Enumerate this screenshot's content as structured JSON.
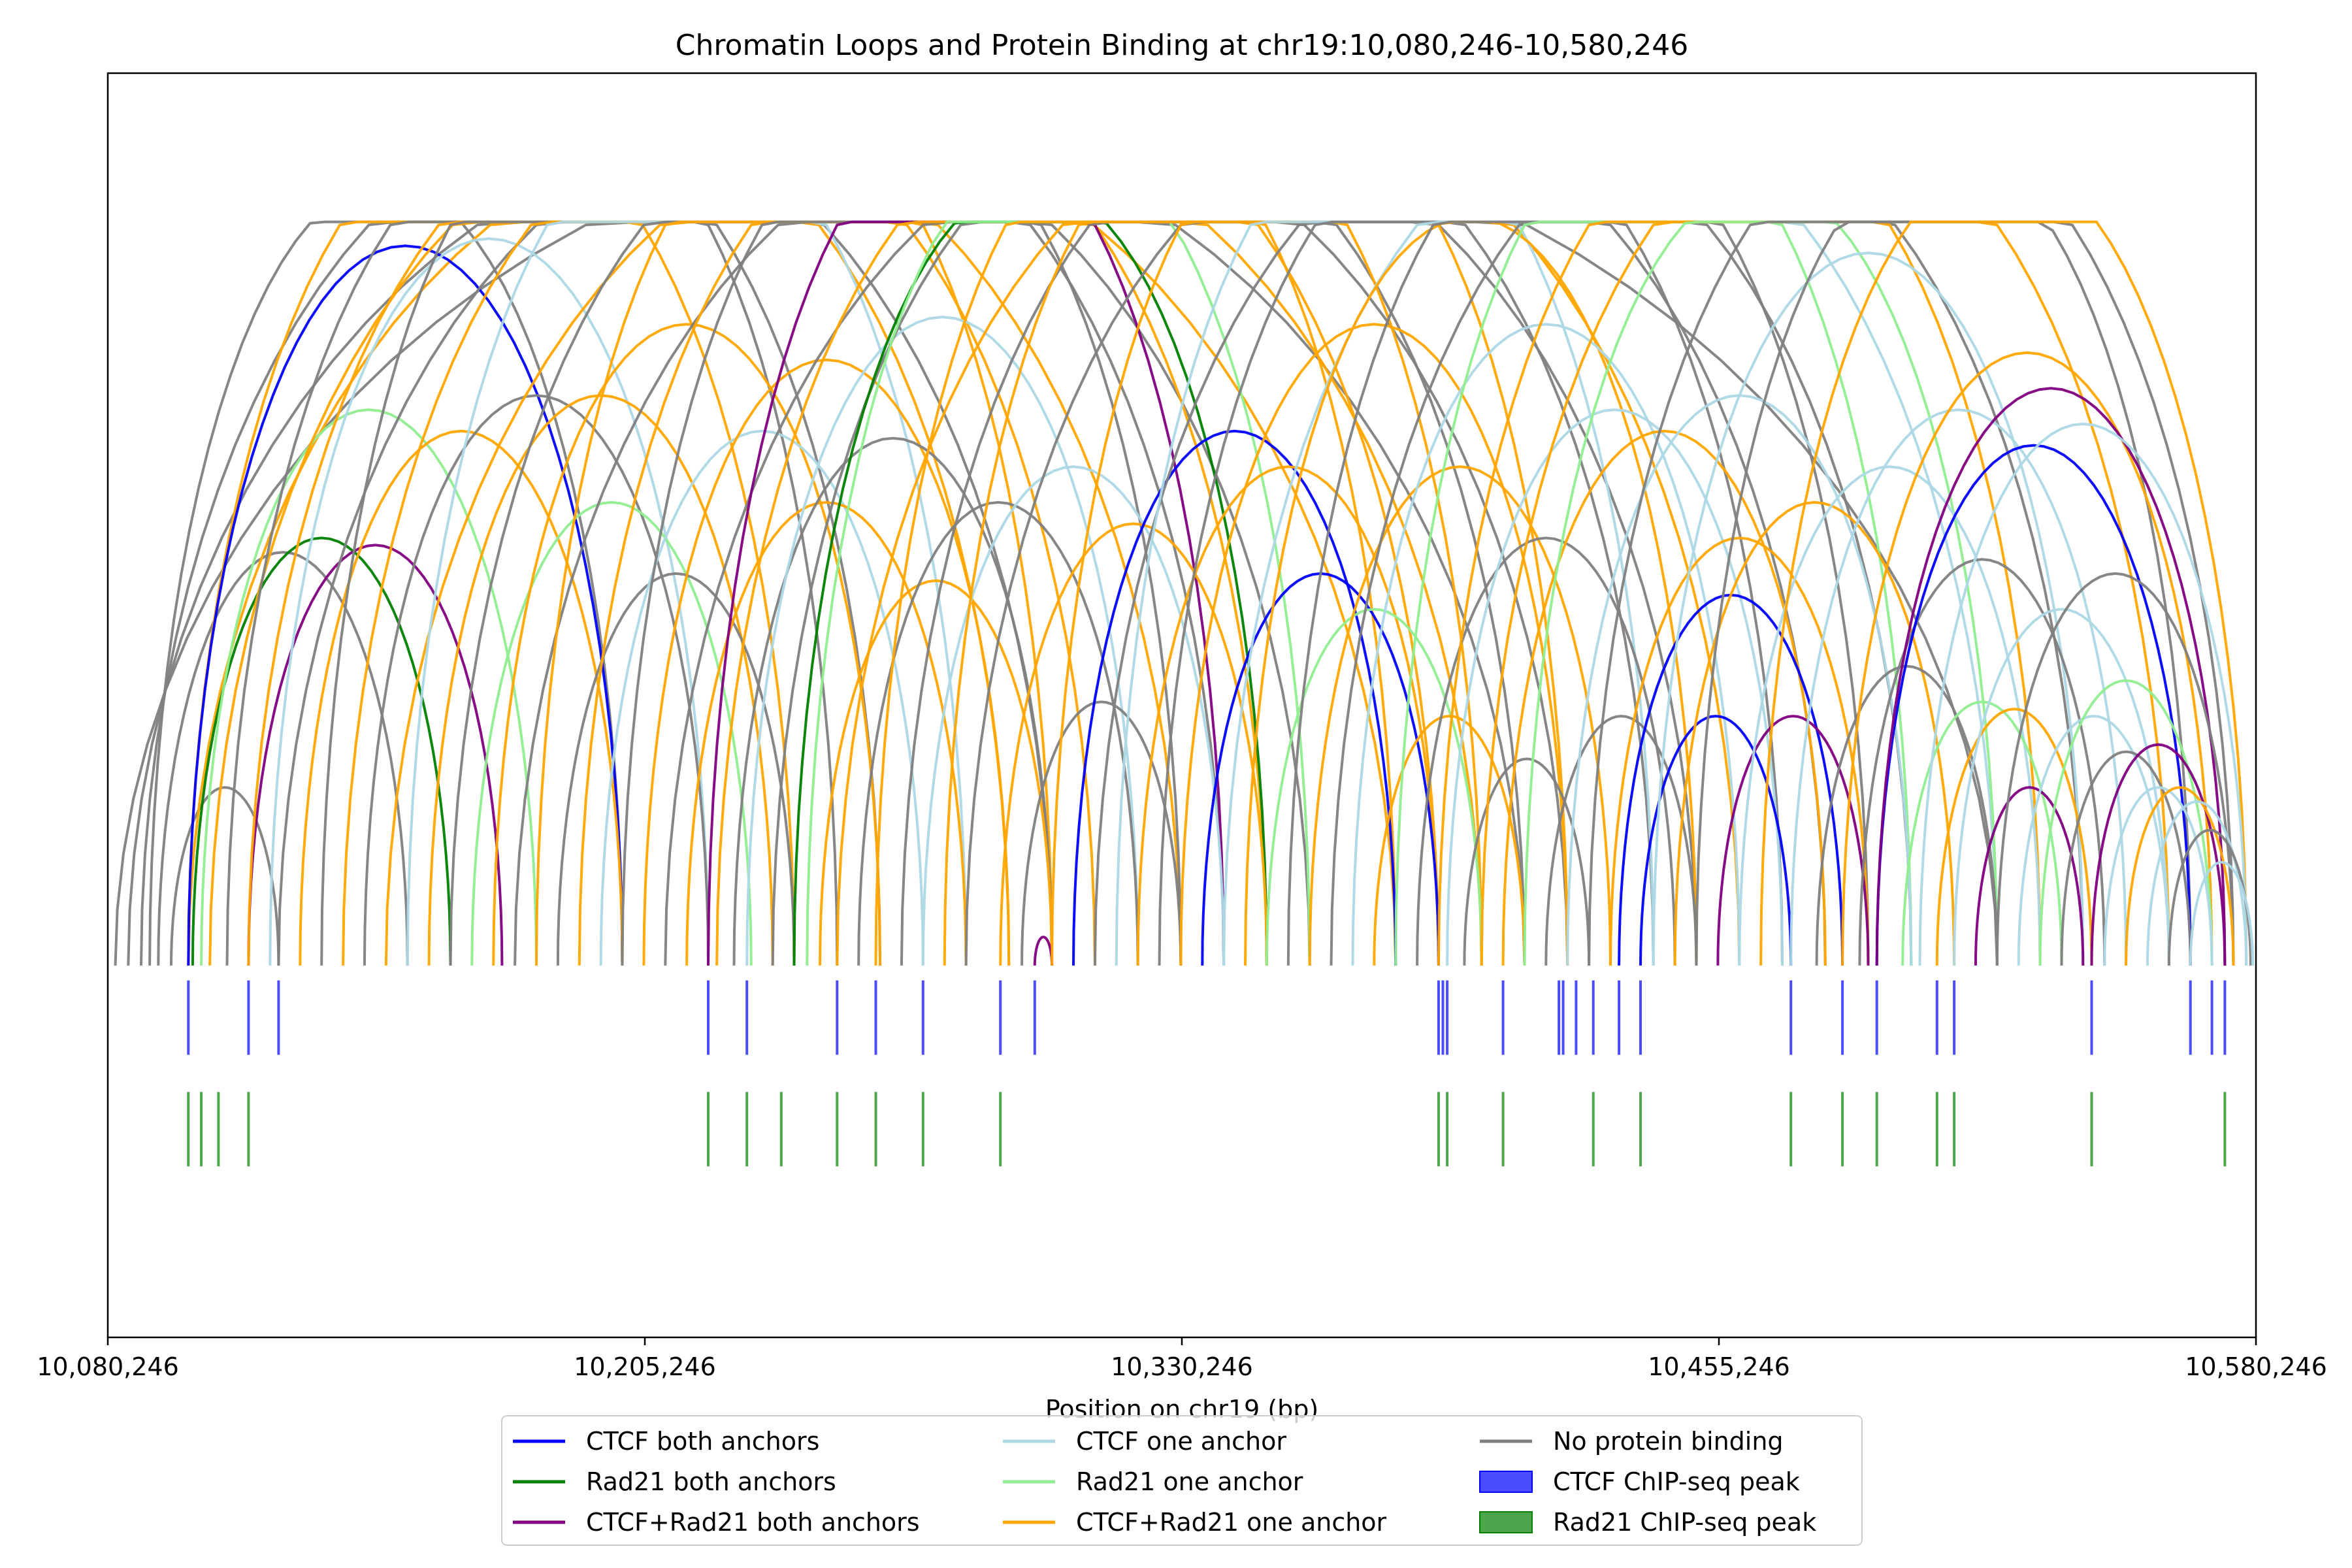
{
  "chart_data": {
    "type": "arc",
    "title": "Chromatin Loops and Protein Binding at chr19:10,080,246-10,580,246",
    "xlabel": "Position on chr19 (bp)",
    "ylabel": "",
    "xlim": [
      10080246,
      10580246
    ],
    "ylim": [
      -0.5,
      1.2
    ],
    "x_ticks": [
      10080246,
      10205246,
      10330246,
      10455246,
      10580246
    ],
    "x_tick_labels": [
      "10,080,246",
      "10,205,246",
      "10,330,246",
      "10,455,246",
      "10,580,246"
    ],
    "grid": false,
    "legend_position": "bottom-center",
    "legend": [
      {
        "label": "CTCF both anchors",
        "color": "#0000ff",
        "kind": "line"
      },
      {
        "label": "Rad21 both anchors",
        "color": "#008000",
        "kind": "line"
      },
      {
        "label": "CTCF+Rad21 both anchors",
        "color": "#800080",
        "kind": "line"
      },
      {
        "label": "CTCF one anchor",
        "color": "#add8e6",
        "kind": "line"
      },
      {
        "label": "Rad21 one anchor",
        "color": "#90ee90",
        "kind": "line"
      },
      {
        "label": "CTCF+Rad21 one anchor",
        "color": "#ffa500",
        "kind": "line"
      },
      {
        "label": "No protein binding",
        "color": "#808080",
        "kind": "line"
      },
      {
        "label": "CTCF ChIP-seq peak",
        "color": "#0000ff",
        "kind": "patch"
      },
      {
        "label": "Rad21 ChIP-seq peak",
        "color": "#008000",
        "kind": "patch"
      }
    ],
    "ctcf_peaks": [
      10099000,
      10113000,
      10120000,
      10220000,
      10229000,
      10250000,
      10259000,
      10270000,
      10288000,
      10296000,
      10390000,
      10391000,
      10392000,
      10405000,
      10418000,
      10419000,
      10422000,
      10426000,
      10432000,
      10437000,
      10472000,
      10484000,
      10492000,
      10506000,
      10510000,
      10542000,
      10565000,
      10570000,
      10573000
    ],
    "rad21_peaks": [
      10099000,
      10102000,
      10106000,
      10113000,
      10220000,
      10229000,
      10237000,
      10250000,
      10259000,
      10270000,
      10288000,
      10390000,
      10392000,
      10405000,
      10426000,
      10437000,
      10472000,
      10484000,
      10492000,
      10506000,
      10510000,
      10542000,
      10573000
    ],
    "loops": [
      {
        "start": 10082000,
        "end": 10520000,
        "category": "No protein binding"
      },
      {
        "start": 10085000,
        "end": 10410000,
        "category": "No protein binding"
      },
      {
        "start": 10088000,
        "end": 10300000,
        "category": "No protein binding"
      },
      {
        "start": 10090000,
        "end": 10200000,
        "category": "No protein binding"
      },
      {
        "start": 10092000,
        "end": 10150000,
        "category": "No protein binding"
      },
      {
        "start": 10095000,
        "end": 10120000,
        "category": "No protein binding"
      },
      {
        "start": 10099000,
        "end": 10380000,
        "category": "CTCF+Rad21 one anchor"
      },
      {
        "start": 10099000,
        "end": 10240000,
        "category": "CTCF+Rad21 one anchor"
      },
      {
        "start": 10099000,
        "end": 10200000,
        "category": "CTCF both anchors"
      },
      {
        "start": 10100000,
        "end": 10160000,
        "category": "Rad21 both anchors"
      },
      {
        "start": 10102000,
        "end": 10180000,
        "category": "Rad21 one anchor"
      },
      {
        "start": 10104000,
        "end": 10330000,
        "category": "CTCF+Rad21 one anchor"
      },
      {
        "start": 10108000,
        "end": 10260000,
        "category": "No protein binding"
      },
      {
        "start": 10113000,
        "end": 10172000,
        "category": "CTCF+Rad21 both anchors"
      },
      {
        "start": 10113000,
        "end": 10290000,
        "category": "CTCF+Rad21 one anchor"
      },
      {
        "start": 10118000,
        "end": 10220000,
        "category": "CTCF one anchor"
      },
      {
        "start": 10120000,
        "end": 10360000,
        "category": "No protein binding"
      },
      {
        "start": 10125000,
        "end": 10200000,
        "category": "CTCF+Rad21 one anchor"
      },
      {
        "start": 10130000,
        "end": 10250000,
        "category": "No protein binding"
      },
      {
        "start": 10135000,
        "end": 10310000,
        "category": "CTCF+Rad21 one anchor"
      },
      {
        "start": 10140000,
        "end": 10220000,
        "category": "No protein binding"
      },
      {
        "start": 10145000,
        "end": 10400000,
        "category": "CTCF+Rad21 one anchor"
      },
      {
        "start": 10150000,
        "end": 10280000,
        "category": "CTCF one anchor"
      },
      {
        "start": 10155000,
        "end": 10235000,
        "category": "CTCF+Rad21 one anchor"
      },
      {
        "start": 10160000,
        "end": 10340000,
        "category": "No protein binding"
      },
      {
        "start": 10165000,
        "end": 10230000,
        "category": "Rad21 one anchor"
      },
      {
        "start": 10170000,
        "end": 10260000,
        "category": "CTCF+Rad21 one anchor"
      },
      {
        "start": 10175000,
        "end": 10420000,
        "category": "No protein binding"
      },
      {
        "start": 10180000,
        "end": 10300000,
        "category": "CTCF+Rad21 one anchor"
      },
      {
        "start": 10185000,
        "end": 10240000,
        "category": "No protein binding"
      },
      {
        "start": 10190000,
        "end": 10350000,
        "category": "CTCF+Rad21 one anchor"
      },
      {
        "start": 10195000,
        "end": 10270000,
        "category": "CTCF one anchor"
      },
      {
        "start": 10200000,
        "end": 10330000,
        "category": "No protein binding"
      },
      {
        "start": 10205000,
        "end": 10290000,
        "category": "CTCF+Rad21 one anchor"
      },
      {
        "start": 10210000,
        "end": 10450000,
        "category": "No protein binding"
      },
      {
        "start": 10215000,
        "end": 10280000,
        "category": "CTCF+Rad21 one anchor"
      },
      {
        "start": 10220000,
        "end": 10340000,
        "category": "CTCF+Rad21 both anchors"
      },
      {
        "start": 10222000,
        "end": 10390000,
        "category": "CTCF+Rad21 one anchor"
      },
      {
        "start": 10226000,
        "end": 10300000,
        "category": "No protein binding"
      },
      {
        "start": 10229000,
        "end": 10320000,
        "category": "CTCF one anchor"
      },
      {
        "start": 10235000,
        "end": 10410000,
        "category": "No protein binding"
      },
      {
        "start": 10240000,
        "end": 10350000,
        "category": "Rad21 both anchors"
      },
      {
        "start": 10243000,
        "end": 10360000,
        "category": "Rad21 one anchor"
      },
      {
        "start": 10246000,
        "end": 10300000,
        "category": "CTCF+Rad21 one anchor"
      },
      {
        "start": 10250000,
        "end": 10460000,
        "category": "CTCF+Rad21 one anchor"
      },
      {
        "start": 10255000,
        "end": 10320000,
        "category": "No protein binding"
      },
      {
        "start": 10259000,
        "end": 10380000,
        "category": "CTCF+Rad21 one anchor"
      },
      {
        "start": 10265000,
        "end": 10440000,
        "category": "No protein binding"
      },
      {
        "start": 10270000,
        "end": 10340000,
        "category": "CTCF one anchor"
      },
      {
        "start": 10275000,
        "end": 10400000,
        "category": "CTCF+Rad21 one anchor"
      },
      {
        "start": 10280000,
        "end": 10480000,
        "category": "No protein binding"
      },
      {
        "start": 10288000,
        "end": 10350000,
        "category": "CTCF+Rad21 one anchor"
      },
      {
        "start": 10293000,
        "end": 10330000,
        "category": "No protein binding"
      },
      {
        "start": 10296000,
        "end": 10300000,
        "category": "CTCF+Rad21 both anchors"
      },
      {
        "start": 10300000,
        "end": 10420000,
        "category": "CTCF+Rad21 one anchor"
      },
      {
        "start": 10305000,
        "end": 10380000,
        "category": "CTCF both anchors"
      },
      {
        "start": 10310000,
        "end": 10500000,
        "category": "No protein binding"
      },
      {
        "start": 10315000,
        "end": 10440000,
        "category": "CTCF one anchor"
      },
      {
        "start": 10320000,
        "end": 10390000,
        "category": "CTCF+Rad21 one anchor"
      },
      {
        "start": 10325000,
        "end": 10470000,
        "category": "No protein binding"
      },
      {
        "start": 10330000,
        "end": 10420000,
        "category": "CTCF+Rad21 one anchor"
      },
      {
        "start": 10335000,
        "end": 10390000,
        "category": "CTCF both anchors"
      },
      {
        "start": 10340000,
        "end": 10520000,
        "category": "CTCF one anchor"
      },
      {
        "start": 10345000,
        "end": 10450000,
        "category": "CTCF+Rad21 one anchor"
      },
      {
        "start": 10350000,
        "end": 10400000,
        "category": "Rad21 one anchor"
      },
      {
        "start": 10355000,
        "end": 10490000,
        "category": "No protein binding"
      },
      {
        "start": 10360000,
        "end": 10430000,
        "category": "CTCF+Rad21 one anchor"
      },
      {
        "start": 10365000,
        "end": 10540000,
        "category": "No protein binding"
      },
      {
        "start": 10370000,
        "end": 10460000,
        "category": "CTCF one anchor"
      },
      {
        "start": 10375000,
        "end": 10410000,
        "category": "CTCF+Rad21 one anchor"
      },
      {
        "start": 10380000,
        "end": 10500000,
        "category": "Rad21 one anchor"
      },
      {
        "start": 10385000,
        "end": 10445000,
        "category": "No protein binding"
      },
      {
        "start": 10390000,
        "end": 10530000,
        "category": "CTCF+Rad21 one anchor"
      },
      {
        "start": 10392000,
        "end": 10470000,
        "category": "CTCF one anchor"
      },
      {
        "start": 10396000,
        "end": 10425000,
        "category": "No protein binding"
      },
      {
        "start": 10400000,
        "end": 10560000,
        "category": "CTCF+Rad21 one anchor"
      },
      {
        "start": 10405000,
        "end": 10480000,
        "category": "CTCF+Rad21 one anchor"
      },
      {
        "start": 10410000,
        "end": 10520000,
        "category": "Rad21 one anchor"
      },
      {
        "start": 10415000,
        "end": 10450000,
        "category": "No protein binding"
      },
      {
        "start": 10420000,
        "end": 10500000,
        "category": "CTCF one anchor"
      },
      {
        "start": 10425000,
        "end": 10575000,
        "category": "No protein binding"
      },
      {
        "start": 10430000,
        "end": 10490000,
        "category": "CTCF+Rad21 one anchor"
      },
      {
        "start": 10432000,
        "end": 10484000,
        "category": "CTCF both anchors"
      },
      {
        "start": 10437000,
        "end": 10472000,
        "category": "CTCF both anchors"
      },
      {
        "start": 10440000,
        "end": 10540000,
        "category": "CTCF one anchor"
      },
      {
        "start": 10445000,
        "end": 10510000,
        "category": "CTCF+Rad21 one anchor"
      },
      {
        "start": 10450000,
        "end": 10565000,
        "category": "No protein binding"
      },
      {
        "start": 10455000,
        "end": 10490000,
        "category": "CTCF+Rad21 both anchors"
      },
      {
        "start": 10460000,
        "end": 10530000,
        "category": "CTCF one anchor"
      },
      {
        "start": 10465000,
        "end": 10578000,
        "category": "CTCF+Rad21 one anchor"
      },
      {
        "start": 10472000,
        "end": 10550000,
        "category": "CTCF one anchor"
      },
      {
        "start": 10478000,
        "end": 10520000,
        "category": "No protein binding"
      },
      {
        "start": 10484000,
        "end": 10570000,
        "category": "CTCF+Rad21 one anchor"
      },
      {
        "start": 10488000,
        "end": 10545000,
        "category": "No protein binding"
      },
      {
        "start": 10492000,
        "end": 10565000,
        "category": "CTCF both anchors"
      },
      {
        "start": 10492000,
        "end": 10573000,
        "category": "CTCF+Rad21 both anchors"
      },
      {
        "start": 10498000,
        "end": 10535000,
        "category": "Rad21 one anchor"
      },
      {
        "start": 10502000,
        "end": 10578000,
        "category": "CTCF one anchor"
      },
      {
        "start": 10506000,
        "end": 10542000,
        "category": "CTCF+Rad21 one anchor"
      },
      {
        "start": 10510000,
        "end": 10560000,
        "category": "CTCF one anchor"
      },
      {
        "start": 10515000,
        "end": 10540000,
        "category": "CTCF+Rad21 both anchors"
      },
      {
        "start": 10520000,
        "end": 10575000,
        "category": "No protein binding"
      },
      {
        "start": 10525000,
        "end": 10560000,
        "category": "CTCF one anchor"
      },
      {
        "start": 10530000,
        "end": 10570000,
        "category": "Rad21 one anchor"
      },
      {
        "start": 10535000,
        "end": 10565000,
        "category": "No protein binding"
      },
      {
        "start": 10542000,
        "end": 10573000,
        "category": "CTCF+Rad21 both anchors"
      },
      {
        "start": 10545000,
        "end": 10570000,
        "category": "CTCF one anchor"
      },
      {
        "start": 10550000,
        "end": 10575000,
        "category": "CTCF+Rad21 one anchor"
      },
      {
        "start": 10555000,
        "end": 10578000,
        "category": "CTCF one anchor"
      },
      {
        "start": 10560000,
        "end": 10579000,
        "category": "No protein binding"
      },
      {
        "start": 10565000,
        "end": 10579500,
        "category": "CTCF one anchor"
      }
    ]
  }
}
